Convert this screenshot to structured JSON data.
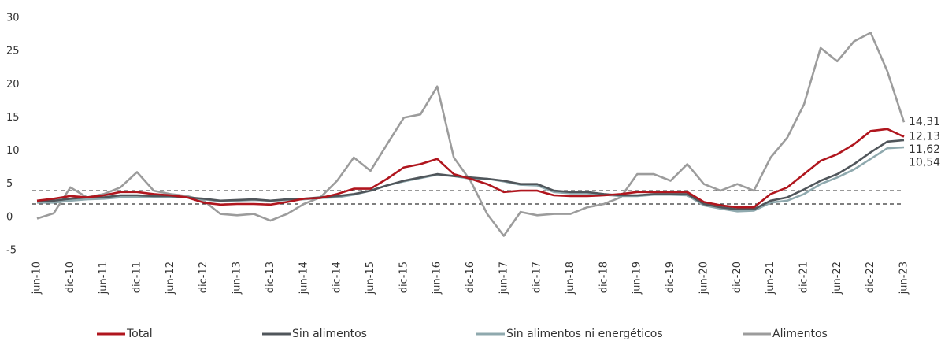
{
  "chart_data": {
    "type": "line",
    "categories": [
      "jun-10",
      null,
      "dic-10",
      null,
      "jun-11",
      null,
      "dic-11",
      null,
      "jun-12",
      null,
      "dic-12",
      null,
      "jun-13",
      null,
      "dic-13",
      null,
      "jun-14",
      null,
      "dic-14",
      null,
      "jun-15",
      null,
      "dic-15",
      null,
      "jun-16",
      null,
      "dic-16",
      null,
      "jun-17",
      null,
      "dic-17",
      null,
      "jun-18",
      null,
      "dic-18",
      null,
      "jun-19",
      null,
      "dic-19",
      null,
      "jun-20",
      null,
      "dic-20",
      null,
      "jun-21",
      null,
      "dic-21",
      null,
      "jun-22",
      null,
      "dic-22",
      null,
      "jun-23"
    ],
    "series": [
      {
        "name": "Total",
        "color": "#b0161e",
        "end_label": "12,13",
        "values": [
          2.5,
          2.8,
          3.2,
          3.0,
          3.3,
          3.8,
          3.8,
          3.5,
          3.3,
          3.0,
          2.2,
          1.9,
          2.0,
          2.0,
          1.9,
          2.3,
          2.8,
          2.9,
          3.5,
          4.3,
          4.3,
          5.8,
          7.5,
          8.0,
          8.8,
          6.5,
          5.8,
          5.0,
          3.8,
          4.0,
          4.0,
          3.3,
          3.2,
          3.2,
          3.3,
          3.5,
          3.8,
          3.8,
          3.8,
          3.8,
          2.3,
          1.8,
          1.5,
          1.5,
          3.5,
          4.5,
          6.5,
          8.5,
          9.5,
          11.0,
          13.0,
          13.3,
          12.13
        ]
      },
      {
        "name": "Sin alimentos",
        "color": "#50565b",
        "end_label": "11,62",
        "values": [
          2.5,
          2.5,
          2.8,
          3.0,
          3.0,
          3.3,
          3.3,
          3.2,
          3.2,
          3.0,
          2.8,
          2.5,
          2.6,
          2.7,
          2.5,
          2.7,
          2.8,
          3.0,
          3.2,
          3.5,
          4.0,
          4.8,
          5.5,
          6.0,
          6.5,
          6.2,
          6.0,
          5.8,
          5.5,
          5.0,
          5.0,
          4.0,
          3.8,
          3.8,
          3.5,
          3.3,
          3.3,
          3.5,
          3.5,
          3.5,
          2.0,
          1.5,
          1.2,
          1.2,
          2.5,
          3.0,
          4.2,
          5.5,
          6.5,
          8.0,
          9.8,
          11.4,
          11.62
        ]
      },
      {
        "name": "Sin alimentos ni energéticos",
        "color": "#8fa9ae",
        "end_label": "10,54",
        "values": [
          2.2,
          2.2,
          2.5,
          2.7,
          2.8,
          3.0,
          3.0,
          3.0,
          3.0,
          3.0,
          2.7,
          2.4,
          2.5,
          2.6,
          2.5,
          2.6,
          2.7,
          2.9,
          3.0,
          3.4,
          4.0,
          4.8,
          5.4,
          5.9,
          6.4,
          6.2,
          5.8,
          5.8,
          5.4,
          4.9,
          4.8,
          3.8,
          3.6,
          3.6,
          3.4,
          3.2,
          3.2,
          3.4,
          3.4,
          3.3,
          1.8,
          1.3,
          0.9,
          1.0,
          2.2,
          2.5,
          3.5,
          5.0,
          6.0,
          7.2,
          8.8,
          10.4,
          10.54
        ]
      },
      {
        "name": "Alimentos",
        "color": "#9c9c9c",
        "end_label": "14,31",
        "values": [
          -0.2,
          0.6,
          4.5,
          3.0,
          3.5,
          4.5,
          6.8,
          4.0,
          3.5,
          3.2,
          2.5,
          0.5,
          0.3,
          0.5,
          -0.5,
          0.5,
          2.0,
          3.0,
          5.5,
          9.0,
          7.0,
          11.0,
          15.0,
          15.5,
          19.7,
          9.0,
          5.5,
          0.5,
          -2.8,
          0.8,
          0.3,
          0.5,
          0.5,
          1.5,
          2.0,
          3.0,
          6.5,
          6.5,
          5.5,
          8.0,
          5.0,
          4.0,
          5.0,
          4.0,
          9.0,
          12.0,
          17.0,
          25.5,
          23.5,
          26.5,
          27.8,
          22.0,
          14.31
        ]
      }
    ],
    "reference_lines": [
      2,
      4
    ],
    "ylim": [
      -5,
      30
    ],
    "yticks": [
      -5,
      0,
      5,
      10,
      15,
      20,
      25,
      30
    ],
    "grid": false
  }
}
